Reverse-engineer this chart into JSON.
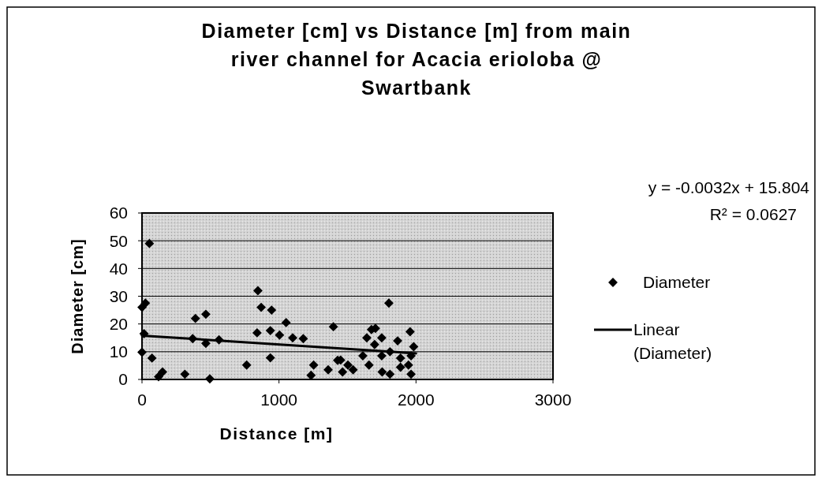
{
  "chart_data": {
    "type": "scatter",
    "title": "Diameter [cm] vs Distance [m] from main river channel for Acacia erioloba @ Swartbank",
    "xlabel": "Distance [m]",
    "ylabel": "Diameter [cm]",
    "xlim": [
      0,
      3000
    ],
    "xticks": [
      0,
      1000,
      2000,
      3000
    ],
    "ylim": [
      0,
      60
    ],
    "yticks": [
      0,
      10,
      20,
      30,
      40,
      50,
      60
    ],
    "grid": "y",
    "legend": "right",
    "marker": "diamond",
    "annotations": [
      "y = -0.0032x + 15.804",
      "R² = 0.0627"
    ],
    "series": [
      {
        "name": "Diameter",
        "color": "#000000",
        "x": [
          54,
          846,
          25,
          0,
          870,
          946,
          390,
          466,
          1052,
          1397,
          15,
          370,
          466,
          562,
          840,
          937,
          1004,
          1100,
          1177,
          0,
          73,
          937,
          764,
          150,
          313,
          495,
          121,
          1253,
          1234,
          1359,
          1450,
          1802,
          1675,
          1704,
          1957,
          1750,
          1866,
          1983,
          1641,
          1698,
          1612,
          1503,
          1428,
          1657,
          1753,
          1810,
          1964,
          1945,
          1887,
          1810,
          1964,
          1887,
          1750,
          1541,
          1464
        ],
        "values": [
          49,
          32,
          27.5,
          26,
          26,
          25,
          22,
          23.5,
          20.5,
          19,
          16.5,
          14.7,
          13,
          14.3,
          16.8,
          17.6,
          16,
          15,
          14.7,
          9.8,
          7.7,
          7.8,
          5.2,
          2.7,
          1.9,
          0.2,
          1,
          5.2,
          1.5,
          3.5,
          7,
          27.5,
          18,
          18.4,
          17.2,
          15,
          13.9,
          11.8,
          15,
          12.6,
          8.5,
          5.2,
          6.9,
          5.2,
          2.7,
          1.9,
          1.9,
          5.2,
          7.7,
          10,
          8.5,
          4.4,
          8.5,
          3.5,
          2.7
        ]
      },
      {
        "name": "Linear (Diameter)",
        "type": "line",
        "color": "#000000",
        "line_style": "solid",
        "marker": "none",
        "x": [
          0,
          2000
        ],
        "values": [
          15.8,
          9.4
        ]
      }
    ]
  }
}
